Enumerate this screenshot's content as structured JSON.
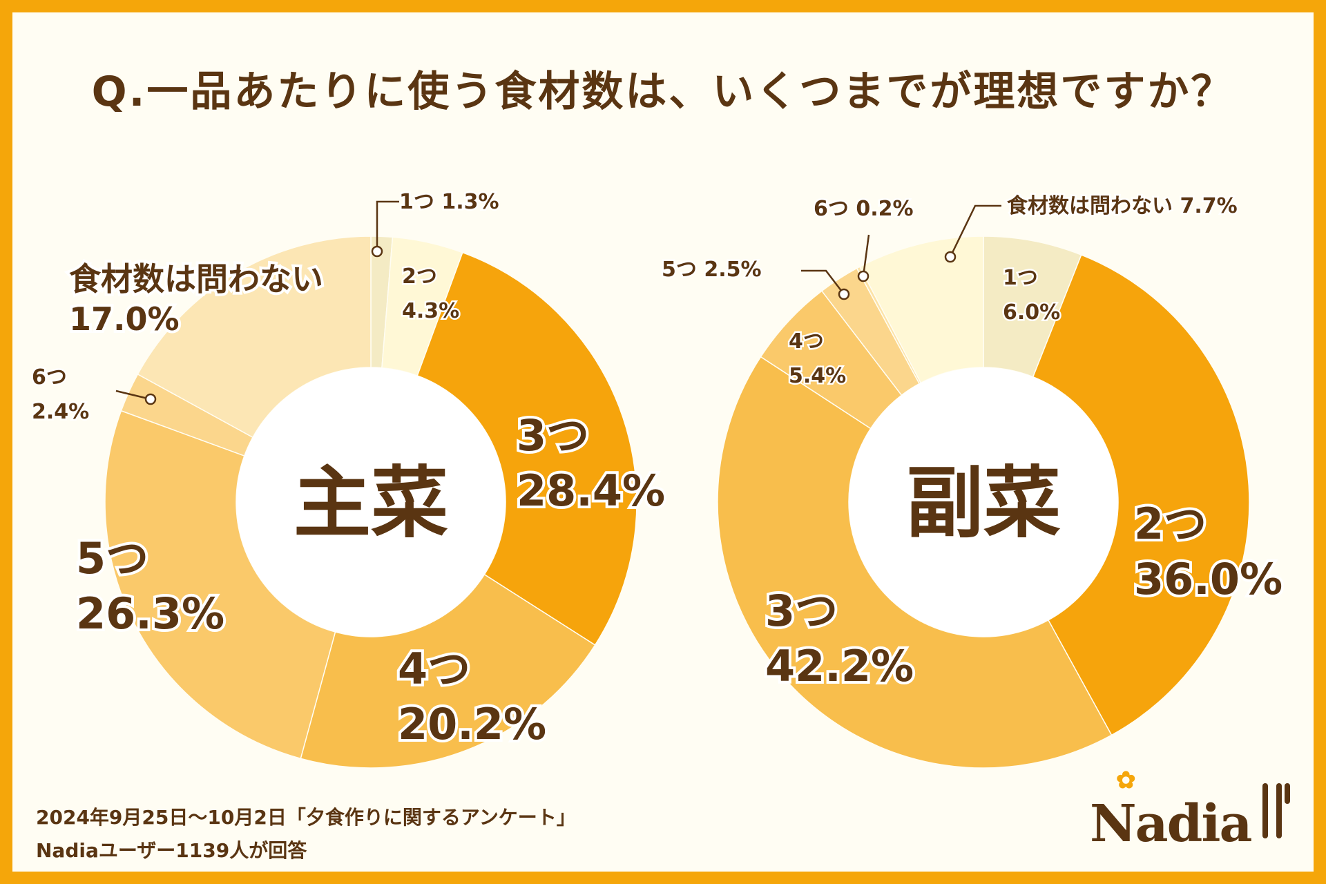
{
  "title": "Q.一品あたりに使う食材数は、いくつまでが理想ですか？",
  "chart_data": [
    {
      "type": "pie",
      "variant": "donut",
      "center_label": "主菜",
      "slices": [
        {
          "label": "1つ",
          "value": 1.3,
          "value_text": "1.3%",
          "color": "#F4EBC4"
        },
        {
          "label": "2つ",
          "value": 4.3,
          "value_text": "4.3%",
          "color": "#FFF8D6"
        },
        {
          "label": "3つ",
          "value": 28.4,
          "value_text": "28.4%",
          "color": "#F6A40C"
        },
        {
          "label": "4つ",
          "value": 20.2,
          "value_text": "20.2%",
          "color": "#F8BE4C"
        },
        {
          "label": "5つ",
          "value": 26.3,
          "value_text": "26.3%",
          "color": "#FAC96A"
        },
        {
          "label": "6つ",
          "value": 2.4,
          "value_text": "2.4%",
          "color": "#FBD68C"
        },
        {
          "label": "食材数は問わない",
          "value": 17.0,
          "value_text": "17.0%",
          "color": "#FCE6B4"
        }
      ]
    },
    {
      "type": "pie",
      "variant": "donut",
      "center_label": "副菜",
      "slices": [
        {
          "label": "1つ",
          "value": 6.0,
          "value_text": "6.0%",
          "color": "#F4EBC4"
        },
        {
          "label": "2つ",
          "value": 36.0,
          "value_text": "36.0%",
          "color": "#F6A40C"
        },
        {
          "label": "3つ",
          "value": 42.2,
          "value_text": "42.2%",
          "color": "#F8BE4C"
        },
        {
          "label": "4つ",
          "value": 5.4,
          "value_text": "5.4%",
          "color": "#FAC96A"
        },
        {
          "label": "5つ",
          "value": 2.5,
          "value_text": "2.5%",
          "color": "#FBD68C"
        },
        {
          "label": "6つ",
          "value": 0.2,
          "value_text": "0.2%",
          "color": "#FCE3A8"
        },
        {
          "label": "食材数は問わない",
          "value": 7.7,
          "value_text": "7.7%",
          "color": "#FFF8D6"
        }
      ]
    }
  ],
  "footer": {
    "line1": "2024年9月25日〜10月2日「夕食作りに関するアンケート」",
    "line2": "Nadiaユーザー1139人が回答"
  },
  "logo": {
    "text": "Nadia",
    "flower": "✿"
  },
  "colors": {
    "background": "#F5A60A",
    "card": "#FFFDF3",
    "text": "#5A3512"
  }
}
